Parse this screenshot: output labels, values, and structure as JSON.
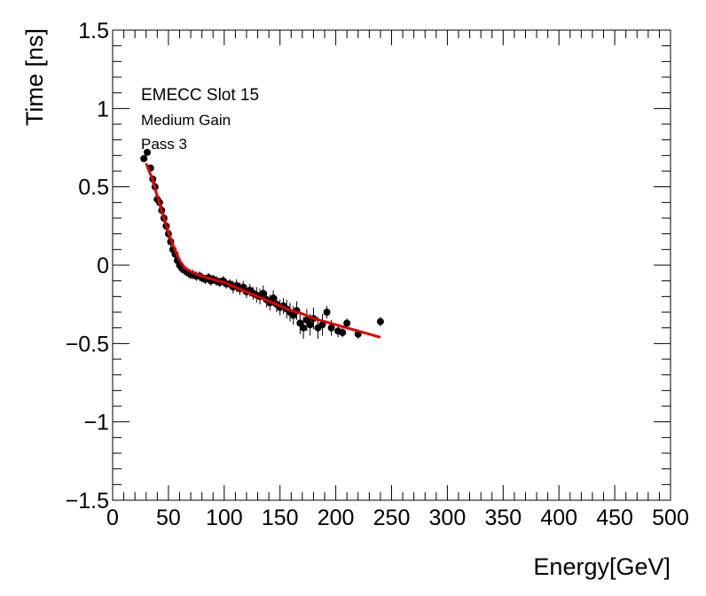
{
  "chart_data": {
    "type": "scatter",
    "xlabel": "Energy[GeV]",
    "ylabel": "Time [ns]",
    "xlim": [
      0,
      500
    ],
    "ylim": [
      -1.5,
      1.5
    ],
    "x_ticks": [
      0,
      50,
      100,
      150,
      200,
      250,
      300,
      350,
      400,
      450,
      500
    ],
    "x_tick_labels": [
      "0",
      "50",
      "100",
      "150",
      "200",
      "250",
      "300",
      "350",
      "400",
      "450",
      "500"
    ],
    "y_ticks": [
      -1.5,
      -1,
      -0.5,
      0,
      0.5,
      1,
      1.5
    ],
    "y_tick_labels": [
      "−1.5",
      "−1",
      "−0.5",
      "0",
      "0.5",
      "1",
      "1.5"
    ],
    "grid": false,
    "annotations": [
      "EMECC Slot 15",
      "Medium Gain",
      "Pass 3"
    ],
    "colors": {
      "points": "#000000",
      "fit": "#e00000"
    },
    "series": [
      {
        "kind": "points-with-error-bars",
        "points": [
          [
            28,
            0.68
          ],
          [
            31,
            0.72
          ],
          [
            34,
            0.62
          ],
          [
            36,
            0.55
          ],
          [
            38,
            0.5
          ],
          [
            40,
            0.42
          ],
          [
            42,
            0.4
          ],
          [
            44,
            0.35
          ],
          [
            46,
            0.3
          ],
          [
            48,
            0.25
          ],
          [
            50,
            0.2
          ],
          [
            52,
            0.15
          ],
          [
            54,
            0.1
          ],
          [
            56,
            0.07
          ],
          [
            58,
            0.03
          ],
          [
            60,
            0.0
          ],
          [
            62,
            -0.02
          ],
          [
            64,
            -0.03
          ],
          [
            66,
            -0.04
          ],
          [
            68,
            -0.05
          ],
          [
            70,
            -0.06
          ],
          [
            72,
            -0.06
          ],
          [
            75,
            -0.07
          ],
          [
            78,
            -0.07
          ],
          [
            80,
            -0.08
          ],
          [
            83,
            -0.09
          ],
          [
            86,
            -0.08
          ],
          [
            88,
            -0.1
          ],
          [
            90,
            -0.09
          ],
          [
            93,
            -0.1
          ],
          [
            96,
            -0.11
          ],
          [
            99,
            -0.1
          ],
          [
            102,
            -0.12
          ],
          [
            105,
            -0.12
          ],
          [
            108,
            -0.14
          ],
          [
            111,
            -0.13
          ],
          [
            114,
            -0.15
          ],
          [
            117,
            -0.14
          ],
          [
            120,
            -0.17
          ],
          [
            123,
            -0.16
          ],
          [
            126,
            -0.18
          ],
          [
            129,
            -0.19
          ],
          [
            132,
            -0.2
          ],
          [
            135,
            -0.18
          ],
          [
            138,
            -0.22
          ],
          [
            141,
            -0.24
          ],
          [
            144,
            -0.21
          ],
          [
            147,
            -0.25
          ],
          [
            150,
            -0.27
          ],
          [
            153,
            -0.26
          ],
          [
            156,
            -0.28
          ],
          [
            159,
            -0.3
          ],
          [
            162,
            -0.32
          ],
          [
            165,
            -0.29
          ],
          [
            168,
            -0.37
          ],
          [
            171,
            -0.4
          ],
          [
            174,
            -0.35
          ],
          [
            177,
            -0.38
          ],
          [
            180,
            -0.34
          ],
          [
            184,
            -0.4
          ],
          [
            188,
            -0.38
          ],
          [
            192,
            -0.3
          ],
          [
            196,
            -0.4
          ],
          [
            202,
            -0.42
          ],
          [
            206,
            -0.43
          ],
          [
            210,
            -0.37
          ],
          [
            220,
            -0.44
          ],
          [
            240,
            -0.36
          ]
        ],
        "error": [
          0.02,
          0.02,
          0.02,
          0.02,
          0.03,
          0.03,
          0.03,
          0.03,
          0.03,
          0.03,
          0.03,
          0.03,
          0.03,
          0.03,
          0.03,
          0.03,
          0.03,
          0.03,
          0.03,
          0.03,
          0.03,
          0.03,
          0.03,
          0.03,
          0.03,
          0.03,
          0.03,
          0.03,
          0.03,
          0.03,
          0.03,
          0.03,
          0.03,
          0.03,
          0.04,
          0.04,
          0.04,
          0.04,
          0.04,
          0.04,
          0.04,
          0.05,
          0.05,
          0.05,
          0.05,
          0.05,
          0.05,
          0.05,
          0.05,
          0.05,
          0.06,
          0.06,
          0.06,
          0.06,
          0.07,
          0.07,
          0.07,
          0.07,
          0.07,
          0.07,
          0.07,
          0.04,
          0.05,
          0.04,
          0.03,
          0.03,
          0.03,
          0.03
        ]
      },
      {
        "kind": "fit-line",
        "points": [
          [
            30,
            0.65
          ],
          [
            35,
            0.56
          ],
          [
            40,
            0.44
          ],
          [
            45,
            0.32
          ],
          [
            50,
            0.21
          ],
          [
            55,
            0.11
          ],
          [
            60,
            0.03
          ],
          [
            65,
            -0.02
          ],
          [
            70,
            -0.04
          ],
          [
            80,
            -0.07
          ],
          [
            90,
            -0.09
          ],
          [
            100,
            -0.11
          ],
          [
            110,
            -0.14
          ],
          [
            120,
            -0.17
          ],
          [
            130,
            -0.2
          ],
          [
            140,
            -0.23
          ],
          [
            150,
            -0.26
          ],
          [
            160,
            -0.29
          ],
          [
            170,
            -0.31
          ],
          [
            180,
            -0.34
          ],
          [
            190,
            -0.36
          ],
          [
            200,
            -0.38
          ],
          [
            210,
            -0.4
          ],
          [
            220,
            -0.42
          ],
          [
            230,
            -0.44
          ],
          [
            240,
            -0.46
          ]
        ]
      }
    ]
  }
}
